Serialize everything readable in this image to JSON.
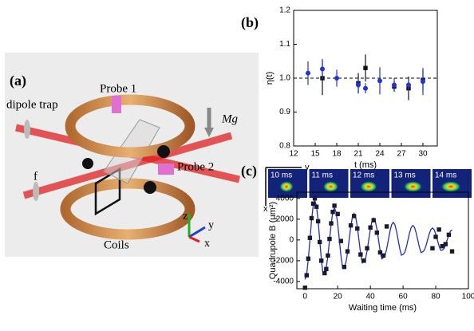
{
  "diagram": {
    "label": "(a)",
    "probe1": "Probe 1",
    "dipole_trap": "dipole trap",
    "gravity": "Mg",
    "probe2": "Probe 2",
    "lens": "f",
    "axis_z": "z",
    "axis_y": "y",
    "axis_x": "x",
    "coils": "Coils"
  },
  "images": {
    "label": "(c)",
    "axis_y": "y",
    "axis_x": "x",
    "frames": [
      "10 ms",
      "11 ms",
      "12 ms",
      "13 ms",
      "14 ms"
    ]
  },
  "chart_data": [
    {
      "type": "scatter",
      "label": "(b)",
      "xlabel": "t (ms)",
      "ylabel": "η(t)",
      "xlim": [
        12,
        32
      ],
      "xticks": [
        12,
        15,
        18,
        21,
        24,
        27,
        30
      ],
      "ylim": [
        0.8,
        1.2
      ],
      "yticks": [
        0.8,
        0.9,
        {
          "value": 1,
          "label": "1.0"
        },
        1.1,
        1.2
      ],
      "reference_line": 1,
      "series": [
        {
          "color": "#111111",
          "marker": "square",
          "x": [
            16,
            21,
            22,
            26,
            28,
            30
          ],
          "values": [
            1.0,
            0.985,
            1.03,
            0.975,
            0.97,
            0.995
          ],
          "errors": [
            0.05,
            0.03,
            0.04,
            0.015,
            0.035,
            0.03
          ]
        },
        {
          "color": "#2233dd",
          "marker": "circle",
          "x": [
            14,
            16,
            18,
            21,
            22,
            24,
            26,
            28,
            30
          ],
          "values": [
            1.015,
            1.027,
            1.0,
            0.98,
            0.97,
            0.992,
            0.98,
            0.98,
            0.99
          ],
          "errors": [
            0.035,
            0.03,
            0.025,
            0.02,
            0.015,
            0.04,
            0.02,
            0.02,
            0.04
          ]
        }
      ]
    },
    {
      "type": "line",
      "xlabel": "Waiting time (ms)",
      "ylabel": "Quadrupole B (μm²)",
      "xlim": [
        -5,
        100
      ],
      "xticks": [
        0,
        20,
        40,
        60,
        80,
        100
      ],
      "ylim": [
        -4700,
        4600
      ],
      "yticks": [
        -4000,
        -2000,
        0,
        2000,
        4000
      ],
      "series": [
        {
          "color": "#1f2fbf",
          "marker": "none",
          "x": [
            0,
            1,
            2,
            3,
            4,
            5,
            6,
            7,
            8,
            9,
            10,
            11,
            12,
            13,
            14,
            15,
            16,
            17,
            18,
            19,
            20,
            21,
            22,
            23,
            24,
            25,
            26,
            27,
            28,
            29,
            30,
            31,
            32,
            33,
            34,
            35,
            36,
            37,
            38,
            39,
            40,
            41,
            42,
            43,
            44,
            45,
            46,
            47,
            48,
            49,
            50,
            51,
            52,
            53,
            54,
            55,
            56,
            57,
            58,
            59,
            60,
            61,
            62,
            63,
            64,
            65,
            66,
            67,
            68,
            69,
            70,
            71,
            72,
            73,
            74,
            75,
            76,
            77,
            78,
            79,
            80,
            81,
            82,
            83,
            84,
            85,
            86,
            87,
            88,
            89,
            90
          ],
          "values": [
            -3800,
            -3291,
            -1900,
            0,
            1900,
            3291,
            3800,
            3291,
            1900,
            0,
            -1900,
            -3291,
            -3100,
            -2685,
            -1550,
            0,
            1550,
            2685,
            3100,
            2685,
            1550,
            0,
            -1550,
            -2685,
            -2550,
            -2208,
            -1275,
            0,
            1275,
            2208,
            2550,
            2208,
            1275,
            0,
            -1275,
            -2208,
            -2100,
            -1819,
            -1050,
            0,
            1050,
            1819,
            2100,
            1819,
            1050,
            0,
            -1050,
            -1819,
            -1700,
            -1472,
            -850,
            0,
            850,
            1472,
            1700,
            1472,
            850,
            0,
            -850,
            -1472,
            -1400,
            -1212,
            -700,
            0,
            700,
            1212,
            1400,
            1212,
            700,
            0,
            -700,
            -1212,
            -1150,
            -996,
            -575,
            0,
            575,
            996,
            1150,
            996,
            575,
            0,
            -575,
            -996,
            -980,
            -849,
            -490,
            0,
            490,
            849,
            980
          ]
        },
        {
          "color": "#1a1a2e",
          "marker": "square",
          "x": [
            0,
            1,
            2,
            3,
            4,
            5,
            6,
            7,
            8,
            9,
            10,
            12,
            13,
            14,
            15,
            16,
            17,
            18,
            20,
            22,
            24,
            26,
            28,
            30,
            32,
            34,
            36,
            38,
            40,
            42,
            44,
            46,
            48,
            50,
            78,
            80,
            82,
            84,
            86,
            88,
            90
          ],
          "values": [
            -4600,
            -3400,
            -1800,
            200,
            2100,
            3500,
            4000,
            3200,
            1800,
            -200,
            -2000,
            -3200,
            -2800,
            -1500,
            100,
            1600,
            2700,
            3300,
            2500,
            -100,
            -2600,
            -1100,
            1400,
            2300,
            1100,
            -1400,
            -2000,
            -800,
            1200,
            1900,
            700,
            -1200,
            -1500,
            1300,
            -800,
            300,
            1000,
            -600,
            -400,
            500,
            -1100
          ]
        }
      ]
    }
  ]
}
